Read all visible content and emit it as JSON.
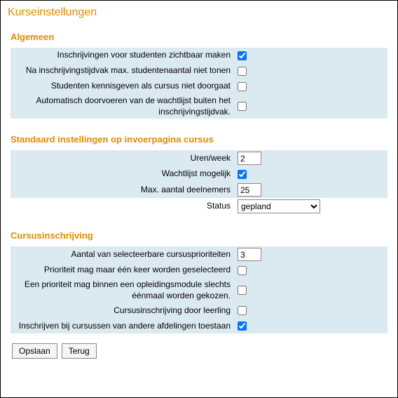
{
  "title": "Kurseinstellungen",
  "sections": {
    "general": {
      "title": "Algemeen",
      "rows": [
        {
          "label": "Inschrijvingen voor studenten zichtbaar maken",
          "checked": true
        },
        {
          "label": "Na inschrijvingstijdvak max. studentenaantal niet tonen",
          "checked": false
        },
        {
          "label": "Studenten kennisgeven als cursus niet doorgaat",
          "checked": false
        },
        {
          "label": "Automatisch doorvoeren van de wachtlijst buiten het inschrijvingstijdvak.",
          "checked": false
        }
      ]
    },
    "defaults": {
      "title": "Standaard instellingen op invoerpagina cursus",
      "hoursPerWeek": {
        "label": "Uren/week",
        "value": "2"
      },
      "waitlist": {
        "label": "Wachtlijst mogelijk",
        "checked": true
      },
      "maxParticipants": {
        "label": "Max. aantal deelnemers",
        "value": "25"
      },
      "status": {
        "label": "Status",
        "value": "gepland"
      }
    },
    "enrollment": {
      "title": "Cursusinschrijving",
      "priorities": {
        "label": "Aantal van selecteerbare cursusprioriteiten",
        "value": "3"
      },
      "priorityOnce": {
        "label": "Prioriteit mag maar één keer worden geselecteerd",
        "checked": false
      },
      "priorityModuleOnce": {
        "label": "Een prioriteit mag binnen een opleidingsmodule slechts éénmaal worden gekozen.",
        "checked": false
      },
      "byStudent": {
        "label": "Cursusinschrijving door leerling",
        "checked": false
      },
      "otherDepts": {
        "label": "Inschrijven bij cursussen van andere afdelingen toestaan",
        "checked": true
      }
    }
  },
  "buttons": {
    "save": "Opslaan",
    "back": "Terug"
  }
}
